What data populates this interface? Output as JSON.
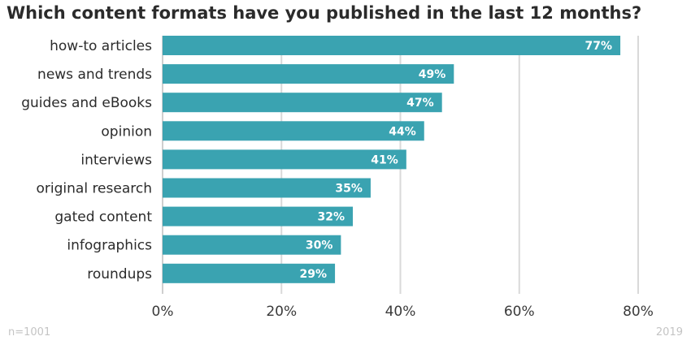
{
  "chart_data": {
    "type": "bar",
    "orientation": "horizontal",
    "title": "Which content formats have you published in the last 12 months?",
    "categories": [
      "how-to articles",
      "news and trends",
      "guides and eBooks",
      "opinion",
      "interviews",
      "original research",
      "gated content",
      "infographics",
      "roundups"
    ],
    "values": [
      77,
      49,
      47,
      44,
      41,
      35,
      32,
      30,
      29
    ],
    "value_labels": [
      "77%",
      "49%",
      "47%",
      "44%",
      "41%",
      "35%",
      "32%",
      "30%",
      "29%"
    ],
    "xticks": [
      0,
      20,
      40,
      60,
      80
    ],
    "xtick_labels": [
      "0%",
      "20%",
      "40%",
      "60%",
      "80%"
    ],
    "xlim": [
      0,
      80
    ],
    "grid": "vertical",
    "bar_color": "#3aa3b1"
  },
  "footer": {
    "sample_size": "n=1001",
    "year": "2019"
  }
}
